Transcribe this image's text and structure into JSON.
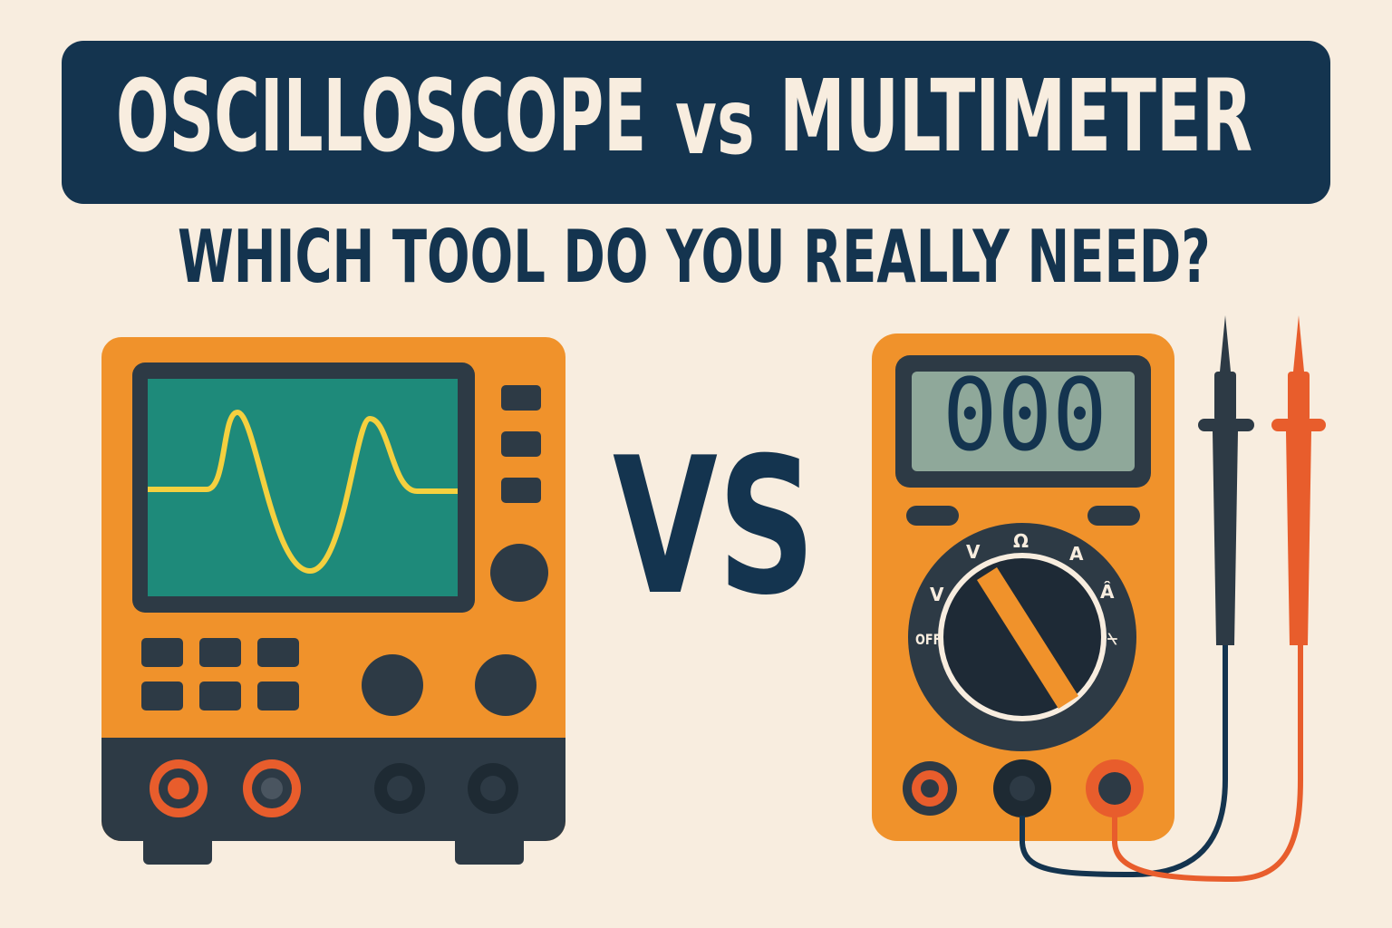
{
  "header": {
    "title_left": "OSCILLOSCOPE",
    "title_vs": "vs",
    "title_right": "MULTIMETER",
    "subtitle": "WHICH TOOL DO YOU REALLY NEED?"
  },
  "center": {
    "vs_label": "VS"
  },
  "multimeter": {
    "display_value": "000",
    "dial_labels": [
      "OFF",
      "V",
      "V",
      "Ω",
      "A",
      "Â",
      "⍀"
    ]
  },
  "colors": {
    "background": "#f8eddf",
    "navy": "#14344f",
    "orange": "#f0922b",
    "dark_panel": "#2d3a45",
    "screen_teal": "#1e8a7a",
    "waveform_yellow": "#f4d03f",
    "probe_red": "#e85d2c",
    "lcd": "#8fa89a"
  },
  "icons": [
    "oscilloscope-illustration",
    "multimeter-illustration",
    "probe-black-icon",
    "probe-red-icon"
  ]
}
